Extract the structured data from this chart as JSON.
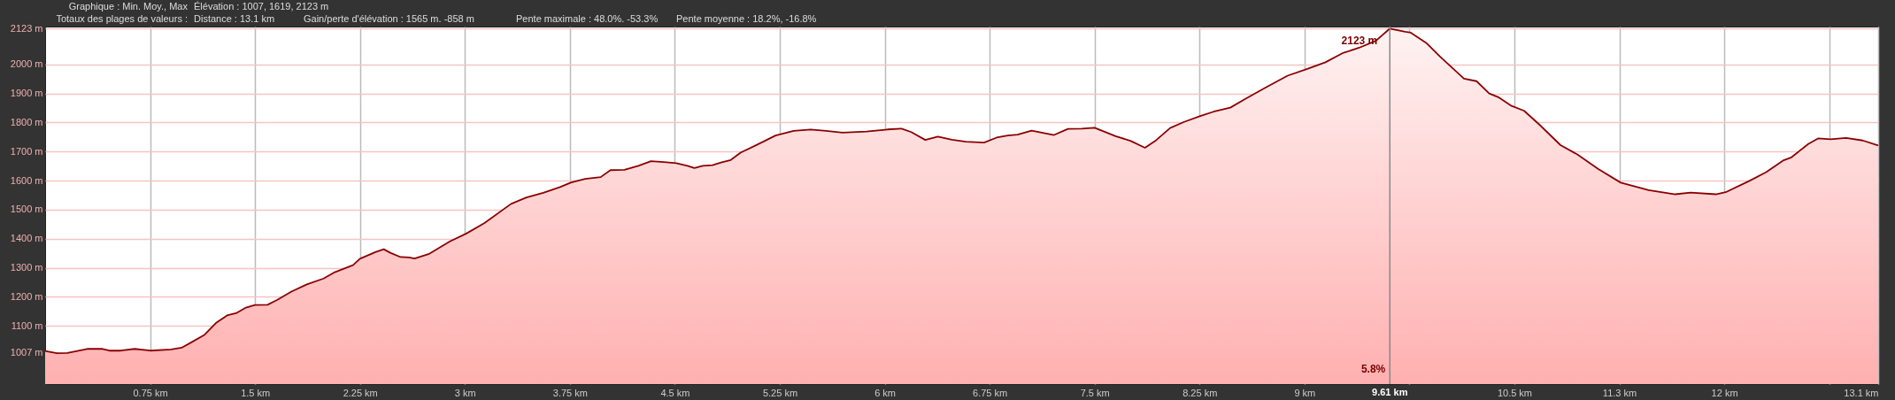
{
  "chart_data": {
    "type": "area",
    "annotations": [
      "Graphique : Min. Moy., Max",
      "Élévation : 1007, 1619, 2123 m",
      "Totaux des plages de valeurs :",
      "Distance : 13.1 km",
      "Gain/perte d'élévation : 1565 m. -858 m",
      "Pente maximale : 48.0%. -53.3%",
      "Pente moyenne : 18.2%, -16.8%",
      {
        "text": "2123 m",
        "x": 9.61,
        "y": 2123
      },
      "5.8%"
    ],
    "x": [
      0,
      0.085,
      0.158,
      0.3,
      0.41,
      0.46,
      0.54,
      0.64,
      0.75,
      0.9,
      0.975,
      1.05,
      1.14,
      1.22,
      1.3,
      1.37,
      1.43,
      1.5,
      1.59,
      1.66,
      1.76,
      1.87,
      1.99,
      2.07,
      2.2,
      2.25,
      2.36,
      2.42,
      2.47,
      2.54,
      2.6,
      2.64,
      2.74,
      2.89,
      3.01,
      3.14,
      3.33,
      3.44,
      3.56,
      3.68,
      3.76,
      3.86,
      3.97,
      4.04,
      4.14,
      4.24,
      4.33,
      4.42,
      4.51,
      4.59,
      4.64,
      4.7,
      4.77,
      4.83,
      4.9,
      4.97,
      5.09,
      5.22,
      5.35,
      5.47,
      5.58,
      5.7,
      5.87,
      6.02,
      6.12,
      6.19,
      6.29,
      6.38,
      6.48,
      6.58,
      6.71,
      6.8,
      6.88,
      6.95,
      7.05,
      7.21,
      7.31,
      7.41,
      7.5,
      7.65,
      7.76,
      7.86,
      7.94,
      8.04,
      8.14,
      8.26,
      8.35,
      8.47,
      8.58,
      8.73,
      8.88,
      9.02,
      9.15,
      9.27,
      9.39,
      9.51,
      9.61,
      9.72,
      9.76,
      9.87,
      9.97,
      10.14,
      10.23,
      10.32,
      10.39,
      10.48,
      10.57,
      10.68,
      10.83,
      10.95,
      11.1,
      11.26,
      11.46,
      11.65,
      11.76,
      11.94,
      12.01,
      12.18,
      12.3,
      12.42,
      12.48,
      12.6,
      12.67,
      12.76,
      12.87,
      12.99,
      13.1
    ],
    "series": [
      {
        "color": "#8b0000",
        "values": [
          1014,
          1006,
          1007,
          1021,
          1021,
          1015,
          1015,
          1021,
          1015,
          1019,
          1025,
          1045,
          1070,
          1110,
          1136,
          1145,
          1162,
          1172,
          1173,
          1190,
          1218,
          1243,
          1263,
          1285,
          1309,
          1331,
          1354,
          1364,
          1351,
          1337,
          1336,
          1332,
          1347,
          1390,
          1418,
          1454,
          1520,
          1542,
          1558,
          1578,
          1594,
          1606,
          1612,
          1636,
          1637,
          1651,
          1667,
          1664,
          1660,
          1651,
          1643,
          1651,
          1653,
          1662,
          1671,
          1696,
          1724,
          1755,
          1771,
          1776,
          1771,
          1765,
          1769,
          1776,
          1779,
          1767,
          1740,
          1751,
          1741,
          1734,
          1731,
          1748,
          1755,
          1758,
          1772,
          1757,
          1778,
          1779,
          1782,
          1753,
          1736,
          1713,
          1739,
          1781,
          1802,
          1823,
          1837,
          1851,
          1882,
          1922,
          1961,
          1984,
          2007,
          2038,
          2057,
          2081,
          2123,
          2112,
          2109,
          2074,
          2026,
          1951,
          1942,
          1900,
          1886,
          1857,
          1840,
          1792,
          1722,
          1690,
          1640,
          1593,
          1567,
          1553,
          1559,
          1553,
          1560,
          1599,
          1629,
          1669,
          1680,
          1726,
          1745,
          1742,
          1747,
          1738,
          1721
        ]
      }
    ],
    "xlim": [
      0,
      13.1
    ],
    "ylim": [
      900,
      2130
    ],
    "xticks": [
      {
        "value": 0.75,
        "label": "0.75 km"
      },
      {
        "value": 1.5,
        "label": "1.5 km"
      },
      {
        "value": 2.25,
        "label": "2.25 km"
      },
      {
        "value": 3,
        "label": "3 km"
      },
      {
        "value": 3.75,
        "label": "3.75 km"
      },
      {
        "value": 4.5,
        "label": "4.5 km"
      },
      {
        "value": 5.25,
        "label": "5.25 km"
      },
      {
        "value": 6,
        "label": "6 km"
      },
      {
        "value": 6.75,
        "label": "6.75 km"
      },
      {
        "value": 7.5,
        "label": "7.5 km"
      },
      {
        "value": 8.25,
        "label": "8.25 km"
      },
      {
        "value": 9,
        "label": "9 km"
      },
      {
        "value": 9.75,
        "label": null
      },
      {
        "value": 10.5,
        "label": "10.5 km"
      },
      {
        "value": 11.25,
        "label": "11.3 km"
      },
      {
        "value": 12,
        "label": "12 km"
      },
      {
        "value": 12.75,
        "label": null
      },
      {
        "value": 13.1,
        "label": "13.1 km"
      }
    ],
    "yticks": [
      {
        "value": 1007,
        "label": "1007 m"
      },
      {
        "value": 1100,
        "label": "1100 m"
      },
      {
        "value": 1200,
        "label": "1200 m"
      },
      {
        "value": 1300,
        "label": "1300 m"
      },
      {
        "value": 1400,
        "label": "1400 m"
      },
      {
        "value": 1500,
        "label": "1500 m"
      },
      {
        "value": 1600,
        "label": "1600 m"
      },
      {
        "value": 1700,
        "label": "1700 m"
      },
      {
        "value": 1800,
        "label": "1800 m"
      },
      {
        "value": 1900,
        "label": "1900 m"
      },
      {
        "value": 2000,
        "label": "2000 m"
      },
      {
        "value": 2123,
        "label": "2123 m"
      }
    ],
    "ref_lines": [
      {
        "axis": "x",
        "value": 9.61,
        "label": "9.61 km",
        "color": "#888888"
      }
    ],
    "grid": true,
    "line_style": "solid",
    "marker": "none"
  }
}
